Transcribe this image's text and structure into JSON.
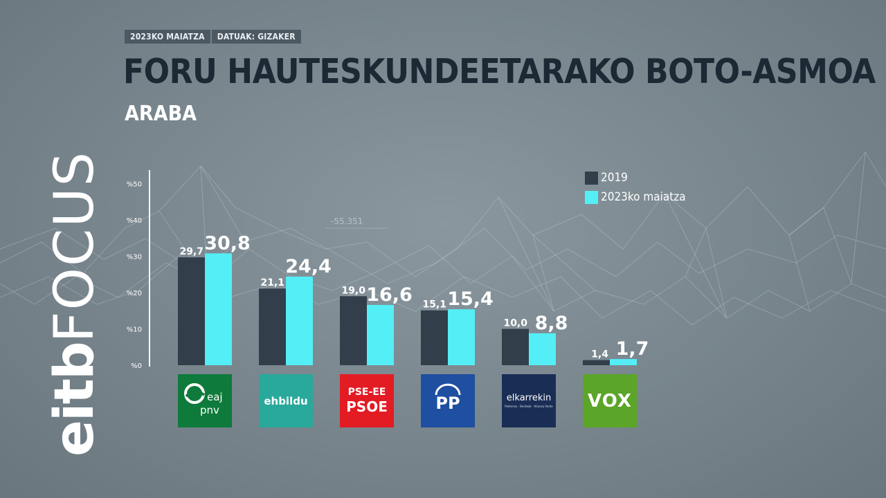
{
  "header": {
    "date_tag": "2023KO MAIATZA",
    "source_tag": "DATUAK: GIZAKER",
    "title": "FORU HAUTESKUNDEETARAKO BOTO-ASMOA",
    "subtitle": "ARABA"
  },
  "brand": {
    "part1": "eitb",
    "part2": "FOCUS"
  },
  "background_annotation": "-55.351",
  "colors": {
    "series_2019": "#333e4b",
    "series_2023": "#54eef7",
    "title": "#1c2833",
    "tag_bg": "#4c5963"
  },
  "logos": [
    {
      "party": "pnv",
      "lines": [
        "eaj",
        "pnv"
      ]
    },
    {
      "party": "ehbildu",
      "lines": [
        "ehbildu"
      ]
    },
    {
      "party": "psoe",
      "lines": [
        "PSE-EE",
        "PSOE"
      ]
    },
    {
      "party": "pp",
      "lines": [
        "PP"
      ]
    },
    {
      "party": "elkarrekin",
      "lines": [
        "elkarrekin",
        "Podemos · Berdeak · Alianza Verde"
      ]
    },
    {
      "party": "vox",
      "lines": [
        "VOX"
      ]
    }
  ],
  "chart_data": {
    "type": "bar",
    "title": "FORU HAUTESKUNDEETARAKO BOTO-ASMOA",
    "subtitle": "ARABA",
    "ylim": [
      0,
      50
    ],
    "yticks": [
      "%0",
      "%10",
      "%20",
      "%30",
      "%40",
      "%50"
    ],
    "yticks_values": [
      0,
      10,
      20,
      30,
      40,
      50
    ],
    "categories": [
      "EAJ-PNV",
      "EH Bildu",
      "PSE-EE PSOE",
      "PP",
      "Elkarrekin",
      "VOX"
    ],
    "series": [
      {
        "name": "2019",
        "values": [
          29.7,
          21.1,
          19.0,
          15.1,
          10.0,
          1.4
        ],
        "labels": [
          "29,7",
          "21,1",
          "19,0",
          "15,1",
          "10,0",
          "1,4"
        ]
      },
      {
        "name": "2023ko maiatza",
        "values": [
          30.8,
          24.4,
          16.6,
          15.4,
          8.8,
          1.7
        ],
        "labels": [
          "30,8",
          "24,4",
          "16,6",
          "15,4",
          "8,8",
          "1,7"
        ]
      }
    ],
    "legend_position": "top-right",
    "grid": false
  }
}
